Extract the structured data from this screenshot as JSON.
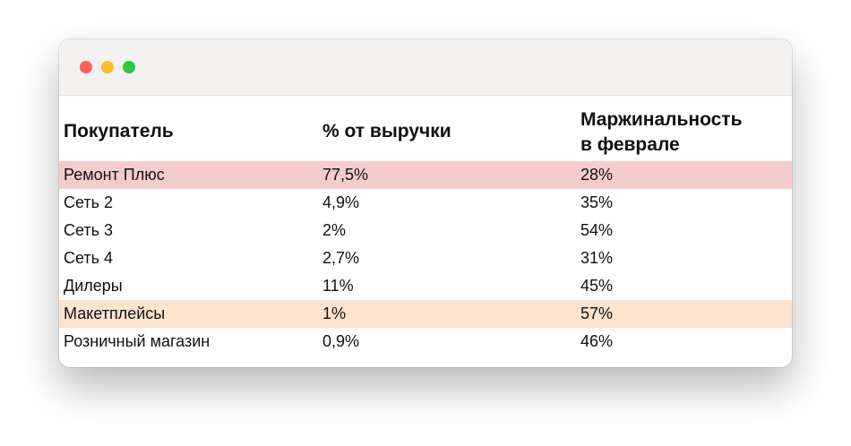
{
  "window": {
    "controls": [
      "close-dot",
      "minimize-dot",
      "maximize-dot"
    ],
    "colors": {
      "close": "#fe5f57",
      "minimize": "#febc2e",
      "maximize": "#28c840"
    }
  },
  "table": {
    "headers": [
      "Покупатель",
      "% от выручки",
      "Маржинальность\nв феврале"
    ],
    "header_col3_line1": "Маржинальность",
    "header_col3_line2": "в феврале",
    "rows": [
      {
        "buyer": "Ремонт Плюс",
        "revenue_share": "77,5%",
        "margin": "28%",
        "highlight": "#f5cccc"
      },
      {
        "buyer": "Сеть 2",
        "revenue_share": "4,9%",
        "margin": "35%",
        "highlight": ""
      },
      {
        "buyer": "Сеть 3",
        "revenue_share": "2%",
        "margin": "54%",
        "highlight": ""
      },
      {
        "buyer": "Сеть 4",
        "revenue_share": "2,7%",
        "margin": "31%",
        "highlight": ""
      },
      {
        "buyer": "Дилеры",
        "revenue_share": "11%",
        "margin": "45%",
        "highlight": ""
      },
      {
        "buyer": "Макетплейсы",
        "revenue_share": "1%",
        "margin": "57%",
        "highlight": "#fbe3cf"
      },
      {
        "buyer": "Розничный магазин",
        "revenue_share": "0,9%",
        "margin": "46%",
        "highlight": ""
      }
    ]
  }
}
